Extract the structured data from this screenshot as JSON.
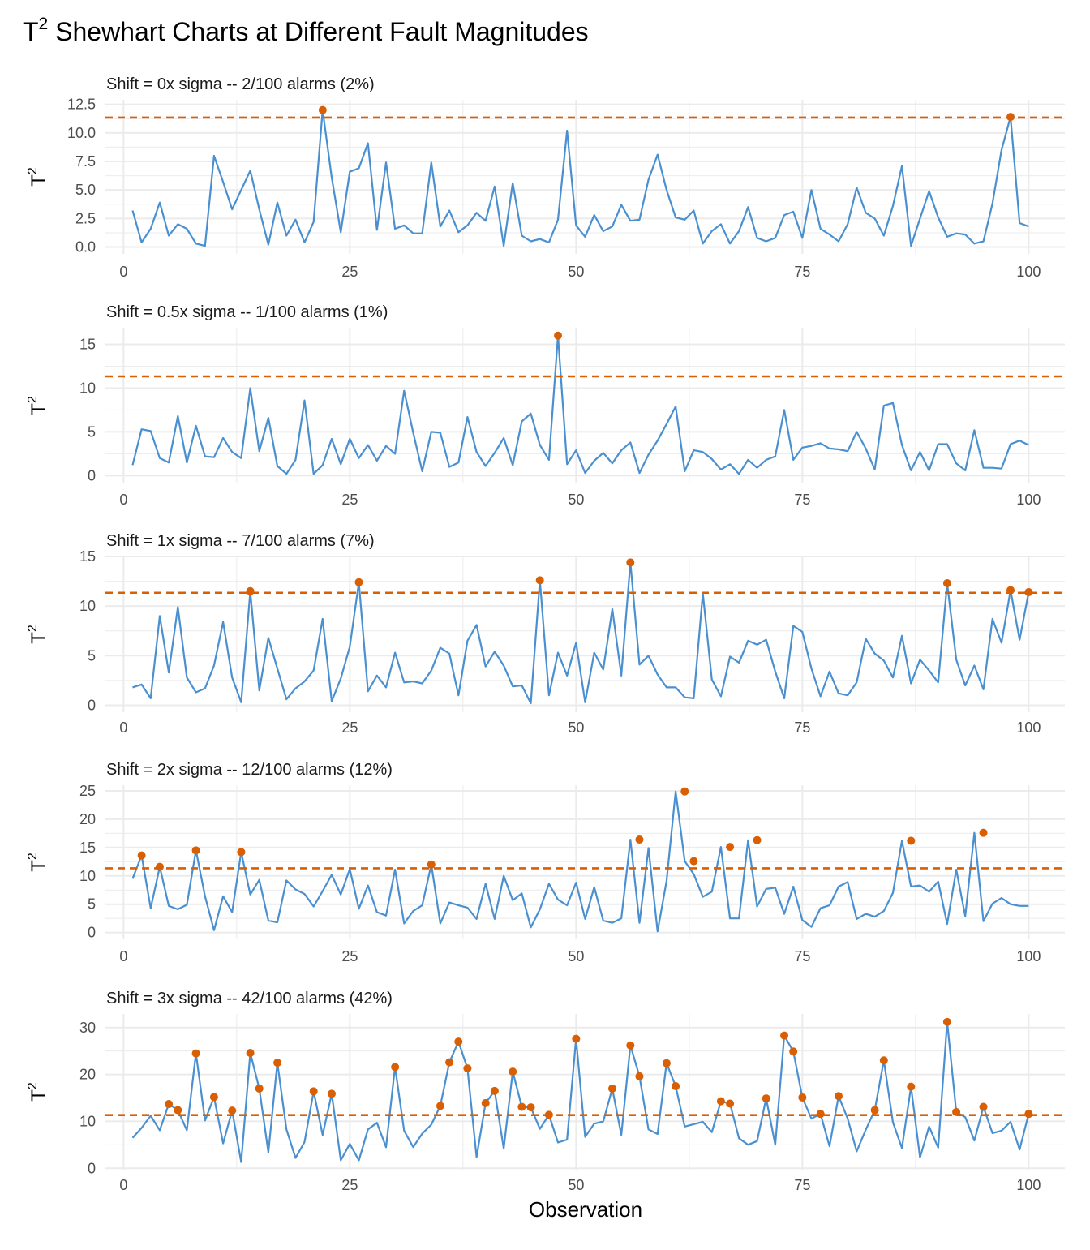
{
  "title_base": "T",
  "title_sup": "2",
  "title_rest": " Shewhart Charts at Different Fault Magnitudes",
  "x_axis_label": "Observation",
  "y_axis_label_base": "T",
  "y_axis_label_sup": "2",
  "colors": {
    "line": "#4a90d0",
    "alarm": "#d95f02",
    "limit": "#d95f02",
    "grid": "#ebebeb"
  },
  "chart_data": [
    {
      "type": "line",
      "title": "Shift = 0x sigma -- 2/100 alarms (2%)",
      "control_limit": 11.34,
      "xlim": [
        -2,
        104
      ],
      "ylim": [
        -0.6,
        12.9
      ],
      "xticks": [
        0,
        25,
        50,
        75,
        100
      ],
      "yticks": [
        0,
        2.5,
        5,
        7.5,
        10,
        12.5
      ],
      "ytick_labels": [
        "0.0",
        "2.5",
        "5.0",
        "7.5",
        "10.0",
        "12.5"
      ],
      "x": [
        1,
        2,
        3,
        4,
        5,
        6,
        7,
        8,
        9,
        10,
        11,
        12,
        13,
        14,
        15,
        16,
        17,
        18,
        19,
        20,
        21,
        22,
        23,
        24,
        25,
        26,
        27,
        28,
        29,
        30,
        31,
        32,
        33,
        34,
        35,
        36,
        37,
        38,
        39,
        40,
        41,
        42,
        43,
        44,
        45,
        46,
        47,
        48,
        49,
        50,
        51,
        52,
        53,
        54,
        55,
        56,
        57,
        58,
        59,
        60,
        61,
        62,
        63,
        64,
        65,
        66,
        67,
        68,
        69,
        70,
        71,
        72,
        73,
        74,
        75,
        76,
        77,
        78,
        79,
        80,
        81,
        82,
        83,
        84,
        85,
        86,
        87,
        88,
        89,
        90,
        91,
        92,
        93,
        94,
        95,
        96,
        97,
        98,
        99,
        100
      ],
      "y": [
        3.2,
        0.4,
        1.6,
        3.9,
        1.0,
        2.0,
        1.6,
        0.3,
        0.1,
        8.0,
        5.7,
        3.3,
        5.0,
        6.7,
        3.3,
        0.2,
        3.9,
        1.0,
        2.4,
        0.4,
        2.2,
        12.0,
        6.1,
        1.3,
        6.6,
        6.9,
        9.1,
        1.5,
        7.4,
        1.6,
        1.9,
        1.2,
        1.2,
        7.4,
        1.8,
        3.2,
        1.3,
        1.9,
        3.0,
        2.3,
        5.3,
        0.1,
        5.6,
        1.0,
        0.5,
        0.7,
        0.4,
        2.4,
        10.2,
        1.9,
        0.9,
        2.8,
        1.4,
        1.8,
        3.7,
        2.3,
        2.4,
        5.9,
        8.1,
        5.0,
        2.6,
        2.4,
        3.2,
        0.3,
        1.4,
        2.0,
        0.3,
        1.4,
        3.5,
        0.8,
        0.5,
        0.8,
        2.8,
        3.1,
        0.8,
        5.0,
        1.6,
        1.1,
        0.5,
        2.0,
        5.2,
        3.0,
        2.5,
        1.0,
        3.6,
        7.1,
        0.1,
        2.5,
        4.9,
        2.6,
        0.9,
        1.2,
        1.1,
        0.3,
        0.5,
        3.8,
        8.5,
        11.4,
        2.1,
        1.8
      ],
      "alarms_x": [
        22,
        98
      ],
      "alarms_y": [
        12.0,
        11.4
      ]
    },
    {
      "type": "line",
      "title": "Shift = 0.5x sigma -- 1/100 alarms (1%)",
      "control_limit": 11.34,
      "xlim": [
        -2,
        104
      ],
      "ylim": [
        -0.8,
        16.9
      ],
      "xticks": [
        0,
        25,
        50,
        75,
        100
      ],
      "yticks": [
        0,
        5,
        10,
        15
      ],
      "ytick_labels": [
        "0",
        "5",
        "10",
        "15"
      ],
      "x": [
        1,
        2,
        3,
        4,
        5,
        6,
        7,
        8,
        9,
        10,
        11,
        12,
        13,
        14,
        15,
        16,
        17,
        18,
        19,
        20,
        21,
        22,
        23,
        24,
        25,
        26,
        27,
        28,
        29,
        30,
        31,
        32,
        33,
        34,
        35,
        36,
        37,
        38,
        39,
        40,
        41,
        42,
        43,
        44,
        45,
        46,
        47,
        48,
        49,
        50,
        51,
        52,
        53,
        54,
        55,
        56,
        57,
        58,
        59,
        60,
        61,
        62,
        63,
        64,
        65,
        66,
        67,
        68,
        69,
        70,
        71,
        72,
        73,
        74,
        75,
        76,
        77,
        78,
        79,
        80,
        81,
        82,
        83,
        84,
        85,
        86,
        87,
        88,
        89,
        90,
        91,
        92,
        93,
        94,
        95,
        96,
        97,
        98,
        99,
        100
      ],
      "y": [
        1.2,
        5.3,
        5.1,
        2.0,
        1.5,
        6.8,
        1.5,
        5.7,
        2.2,
        2.1,
        4.3,
        2.7,
        2.0,
        10.0,
        2.8,
        6.6,
        1.1,
        0.2,
        1.8,
        8.6,
        0.2,
        1.2,
        4.2,
        1.3,
        4.2,
        2.0,
        3.5,
        1.7,
        3.4,
        2.5,
        9.7,
        4.9,
        0.5,
        5.0,
        4.9,
        1.0,
        1.5,
        6.7,
        2.7,
        1.1,
        2.6,
        4.3,
        1.2,
        6.2,
        7.1,
        3.5,
        1.8,
        16.0,
        1.3,
        2.9,
        0.3,
        1.7,
        2.6,
        1.4,
        2.9,
        3.8,
        0.3,
        2.4,
        4.0,
        5.9,
        7.9,
        0.5,
        2.9,
        2.7,
        1.9,
        0.7,
        1.3,
        0.2,
        1.8,
        0.9,
        1.8,
        2.2,
        7.5,
        1.8,
        3.2,
        3.4,
        3.7,
        3.1,
        3.0,
        2.8,
        5.0,
        3.1,
        0.7,
        8.0,
        8.3,
        3.5,
        0.6,
        2.7,
        0.6,
        3.6,
        3.6,
        1.4,
        0.6,
        5.2,
        0.9,
        0.9,
        0.8,
        3.6,
        4.0,
        3.5
      ],
      "alarms_x": [
        48
      ],
      "alarms_y": [
        16.0
      ]
    },
    {
      "type": "line",
      "title": "Shift = 1x sigma -- 7/100 alarms (7%)",
      "control_limit": 11.34,
      "xlim": [
        -2,
        104
      ],
      "ylim": [
        -0.7,
        15.0
      ],
      "xticks": [
        0,
        25,
        50,
        75,
        100
      ],
      "yticks": [
        0,
        5,
        10,
        15
      ],
      "ytick_labels": [
        "0",
        "5",
        "10",
        "15"
      ],
      "x": [
        1,
        2,
        3,
        4,
        5,
        6,
        7,
        8,
        9,
        10,
        11,
        12,
        13,
        14,
        15,
        16,
        17,
        18,
        19,
        20,
        21,
        22,
        23,
        24,
        25,
        26,
        27,
        28,
        29,
        30,
        31,
        32,
        33,
        34,
        35,
        36,
        37,
        38,
        39,
        40,
        41,
        42,
        43,
        44,
        45,
        46,
        47,
        48,
        49,
        50,
        51,
        52,
        53,
        54,
        55,
        56,
        57,
        58,
        59,
        60,
        61,
        62,
        63,
        64,
        65,
        66,
        67,
        68,
        69,
        70,
        71,
        72,
        73,
        74,
        75,
        76,
        77,
        78,
        79,
        80,
        81,
        82,
        83,
        84,
        85,
        86,
        87,
        88,
        89,
        90,
        91,
        92,
        93,
        94,
        95,
        96,
        97,
        98,
        99,
        100
      ],
      "y": [
        1.8,
        2.1,
        0.7,
        9.0,
        3.3,
        9.9,
        2.8,
        1.3,
        1.7,
        4.0,
        8.4,
        2.8,
        0.3,
        11.5,
        1.5,
        6.8,
        3.7,
        0.6,
        1.7,
        2.4,
        3.5,
        8.7,
        0.4,
        2.7,
        5.9,
        12.4,
        1.4,
        3.0,
        1.8,
        5.3,
        2.3,
        2.4,
        2.2,
        3.5,
        5.8,
        5.2,
        1.0,
        6.5,
        8.1,
        3.9,
        5.4,
        4.0,
        1.9,
        2.0,
        0.2,
        12.6,
        1.0,
        5.3,
        3.0,
        6.3,
        0.3,
        5.3,
        3.6,
        9.7,
        3.0,
        14.4,
        4.1,
        5.0,
        3.1,
        1.8,
        1.8,
        0.8,
        0.7,
        11.3,
        2.6,
        0.9,
        4.9,
        4.3,
        6.5,
        6.1,
        6.6,
        3.4,
        0.7,
        8.0,
        7.4,
        3.7,
        0.9,
        3.4,
        1.2,
        1.0,
        2.3,
        6.7,
        5.2,
        4.5,
        2.8,
        7.0,
        2.2,
        4.6,
        3.5,
        2.3,
        12.3,
        4.6,
        2.0,
        4.0,
        1.6,
        8.7,
        6.3,
        11.6,
        6.6,
        11.4
      ],
      "alarms_x": [
        14,
        26,
        46,
        56,
        91,
        98,
        100
      ],
      "alarms_y": [
        11.5,
        12.4,
        12.6,
        14.4,
        12.3,
        11.6,
        11.4
      ]
    },
    {
      "type": "line",
      "title": "Shift = 2x sigma -- 12/100 alarms (12%)",
      "control_limit": 11.34,
      "xlim": [
        -2,
        104
      ],
      "ylim": [
        -1.2,
        26.0
      ],
      "xticks": [
        0,
        25,
        50,
        75,
        100
      ],
      "yticks": [
        0,
        5,
        10,
        15,
        20,
        25
      ],
      "ytick_labels": [
        "0",
        "5",
        "10",
        "15",
        "20",
        "25"
      ],
      "x": [
        1,
        2,
        3,
        4,
        5,
        6,
        7,
        8,
        9,
        10,
        11,
        12,
        13,
        14,
        15,
        16,
        17,
        18,
        19,
        20,
        21,
        22,
        23,
        24,
        25,
        26,
        27,
        28,
        29,
        30,
        31,
        32,
        33,
        34,
        35,
        36,
        37,
        38,
        39,
        40,
        41,
        42,
        43,
        44,
        45,
        46,
        47,
        48,
        49,
        50,
        51,
        52,
        53,
        54,
        55,
        56,
        57,
        58,
        59,
        60,
        61,
        62,
        63,
        64,
        65,
        66,
        67,
        68,
        69,
        70,
        71,
        72,
        73,
        74,
        75,
        76,
        77,
        78,
        79,
        80,
        81,
        82,
        83,
        84,
        85,
        86,
        87,
        88,
        89,
        90,
        91,
        92,
        93,
        94,
        95,
        96,
        97,
        98,
        99,
        100
      ],
      "y": [
        9.5,
        13.6,
        4.3,
        11.6,
        4.7,
        4.1,
        4.9,
        14.5,
        6.4,
        0.4,
        6.4,
        3.6,
        14.2,
        6.7,
        9.3,
        2.1,
        1.8,
        9.2,
        7.6,
        6.8,
        4.6,
        7.3,
        10.2,
        6.7,
        11.2,
        4.2,
        8.3,
        3.6,
        3.0,
        11.1,
        1.6,
        3.8,
        4.8,
        12.0,
        1.6,
        5.3,
        4.8,
        4.4,
        2.4,
        8.6,
        2.4,
        10.0,
        5.7,
        6.9,
        0.9,
        4.1,
        8.6,
        5.8,
        4.8,
        8.8,
        2.4,
        8.0,
        2.1,
        1.7,
        2.5,
        16.4,
        1.7,
        14.9,
        0.2,
        9.1,
        24.9,
        12.6,
        10.3,
        6.3,
        7.2,
        15.1,
        2.5,
        2.5,
        16.3,
        4.6,
        7.7,
        7.9,
        3.3,
        8.1,
        2.2,
        1.0,
        4.3,
        4.8,
        8.1,
        8.9,
        2.4,
        3.3,
        2.8,
        3.8,
        7.0,
        16.2,
        8.1,
        8.3,
        7.2,
        9.0,
        1.5,
        11.1,
        2.9,
        17.6,
        2.0,
        5.1,
        6.1,
        5.0,
        4.7,
        4.7
      ],
      "alarms_x": [
        2,
        4,
        8,
        13,
        34,
        57,
        62,
        63,
        67,
        70,
        87,
        95
      ],
      "alarms_y": [
        13.6,
        11.6,
        14.5,
        14.2,
        12.0,
        16.4,
        24.9,
        12.6,
        15.1,
        16.3,
        16.2,
        17.6
      ]
    },
    {
      "type": "line",
      "title": "Shift = 3x sigma -- 42/100 alarms (42%)",
      "control_limit": 11.34,
      "xlim": [
        -2,
        104
      ],
      "ylim": [
        -0.3,
        32.9
      ],
      "xticks": [
        0,
        25,
        50,
        75,
        100
      ],
      "yticks": [
        0,
        10,
        20,
        30
      ],
      "ytick_labels": [
        "0",
        "10",
        "20",
        "30"
      ],
      "x": [
        1,
        2,
        3,
        4,
        5,
        6,
        7,
        8,
        9,
        10,
        11,
        12,
        13,
        14,
        15,
        16,
        17,
        18,
        19,
        20,
        21,
        22,
        23,
        24,
        25,
        26,
        27,
        28,
        29,
        30,
        31,
        32,
        33,
        34,
        35,
        36,
        37,
        38,
        39,
        40,
        41,
        42,
        43,
        44,
        45,
        46,
        47,
        48,
        49,
        50,
        51,
        52,
        53,
        54,
        55,
        56,
        57,
        58,
        59,
        60,
        61,
        62,
        63,
        64,
        65,
        66,
        67,
        68,
        69,
        70,
        71,
        72,
        73,
        74,
        75,
        76,
        77,
        78,
        79,
        80,
        81,
        82,
        83,
        84,
        85,
        86,
        87,
        88,
        89,
        90,
        91,
        92,
        93,
        94,
        95,
        96,
        97,
        98,
        99,
        100
      ],
      "y": [
        6.5,
        8.6,
        11.2,
        8.1,
        13.7,
        12.4,
        8.1,
        24.5,
        10.2,
        15.2,
        5.3,
        12.3,
        1.3,
        24.6,
        17.0,
        3.4,
        22.5,
        8.3,
        2.2,
        5.6,
        16.4,
        7.1,
        15.9,
        1.7,
        5.2,
        1.7,
        8.3,
        9.7,
        4.5,
        21.6,
        8.0,
        4.5,
        7.4,
        9.3,
        13.3,
        22.6,
        27.0,
        21.3,
        2.4,
        13.9,
        16.5,
        4.2,
        20.6,
        13.1,
        13.0,
        8.4,
        11.4,
        5.5,
        6.1,
        27.6,
        6.7,
        9.5,
        10.0,
        17.0,
        7.1,
        26.2,
        19.6,
        8.3,
        7.3,
        22.4,
        17.5,
        8.9,
        9.4,
        9.9,
        7.7,
        14.3,
        13.8,
        6.4,
        5.0,
        5.8,
        14.9,
        5.0,
        28.3,
        24.9,
        15.1,
        10.6,
        11.6,
        4.7,
        15.4,
        10.6,
        3.6,
        8.2,
        12.4,
        23.0,
        9.8,
        4.3,
        17.4,
        2.3,
        8.9,
        4.4,
        31.2,
        12.0,
        10.9,
        5.9,
        13.1,
        7.5,
        8.0,
        9.9,
        4.0,
        11.6
      ],
      "alarms_x": [
        5,
        6,
        8,
        10,
        12,
        14,
        15,
        17,
        21,
        23,
        30,
        35,
        36,
        37,
        38,
        40,
        41,
        43,
        44,
        45,
        47,
        50,
        54,
        56,
        57,
        60,
        61,
        66,
        67,
        71,
        73,
        74,
        75,
        77,
        79,
        83,
        84,
        87,
        91,
        92,
        95,
        100
      ],
      "alarms_y": [
        13.7,
        12.4,
        24.5,
        15.2,
        12.3,
        24.6,
        17.0,
        22.5,
        16.4,
        15.9,
        21.6,
        13.3,
        22.6,
        27.0,
        21.3,
        13.9,
        16.5,
        20.6,
        13.1,
        13.0,
        11.4,
        27.6,
        17.0,
        26.2,
        19.6,
        22.4,
        17.5,
        14.3,
        13.8,
        14.9,
        28.3,
        24.9,
        15.1,
        11.6,
        15.4,
        12.4,
        23.0,
        17.4,
        31.2,
        12.0,
        13.1,
        11.6
      ]
    }
  ]
}
